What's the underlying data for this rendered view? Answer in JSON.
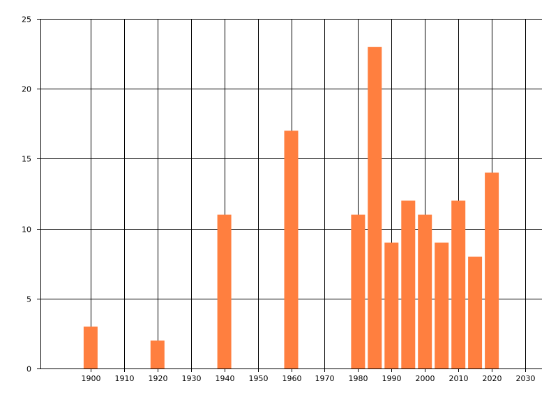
{
  "chart_data": {
    "type": "bar",
    "x": [
      1900,
      1920,
      1940,
      1960,
      1980,
      1985,
      1990,
      1995,
      2000,
      2005,
      2010,
      2015,
      2020
    ],
    "values": [
      3,
      2,
      11,
      17,
      11,
      23,
      9,
      12,
      11,
      9,
      12,
      8,
      14
    ],
    "title": "",
    "xlabel": "",
    "ylabel": "",
    "xlim": [
      1885,
      2035
    ],
    "ylim": [
      0,
      25
    ],
    "xticks": [
      1900,
      1910,
      1920,
      1930,
      1940,
      1950,
      1960,
      1970,
      1980,
      1990,
      2000,
      2010,
      2020,
      2030
    ],
    "yticks": [
      0,
      5,
      10,
      15,
      20,
      25
    ],
    "grid": true,
    "legend": "none",
    "bar_color": "#ff7f3f",
    "grid_color": "#000000"
  }
}
